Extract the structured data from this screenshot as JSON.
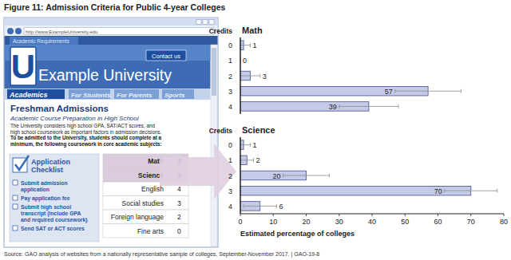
{
  "figure": {
    "title": "Figure 11: Admission Criteria for Public 4-year Colleges",
    "source": "Source: GAO analysis of websites from a nationally representative sample of colleges, September-November 2017.  |  GAO-19-8"
  },
  "website": {
    "url": "http://www.ExampleUniversity.edu",
    "tab": "Academic Requirements",
    "contact": "Contact us",
    "logo": "U",
    "name": "Example University",
    "nav": [
      "Academics",
      "For Students",
      "For Parents",
      "Sports"
    ],
    "heading": "Freshman Admissions",
    "subheading": "Academic Course Preparation in High School",
    "paragraph": [
      "The University considers high school GPA, SAT/ACT scores, and",
      "high school coursework as important factors in admission decisions."
    ],
    "requirement": [
      "To be admitted to the University, students should complete at a",
      "minimum, the following coursework in core academic subjects:"
    ],
    "checklist": {
      "title": [
        "Application",
        "Checklist"
      ],
      "items": [
        [
          "Submit admission",
          "application"
        ],
        [
          "Pay application fee"
        ],
        [
          "Submit high school",
          "transcript (include GPA",
          "and required coursework)"
        ],
        [
          "Send SAT or ACT scores"
        ]
      ]
    },
    "table": {
      "rows": [
        [
          "Math",
          3
        ],
        [
          "Science",
          3
        ],
        [
          "English",
          4
        ],
        [
          "Social studies",
          3
        ],
        [
          "Foreign language",
          2
        ],
        [
          "Fine arts",
          0
        ]
      ]
    }
  },
  "chart_data": [
    {
      "type": "bar",
      "orientation": "horizontal",
      "title": "Math",
      "ylabel": "Credits",
      "categories": [
        "0",
        "1",
        "2",
        "3",
        "4"
      ],
      "values": [
        1,
        0,
        3,
        57,
        39
      ],
      "errors": [
        2,
        0,
        3,
        10,
        9
      ],
      "color": "#c5cae9",
      "xlim": [
        0,
        80
      ],
      "tick_labels": "y",
      "data_labels": true,
      "grid": false
    },
    {
      "type": "bar",
      "orientation": "horizontal",
      "title": "Science",
      "ylabel": "Credits",
      "xlabel": "Estimated percentage of colleges",
      "categories": [
        "0",
        "1",
        "2",
        "3",
        "4"
      ],
      "values": [
        1,
        2,
        20,
        70,
        6
      ],
      "errors": [
        2,
        2,
        7,
        8,
        5
      ],
      "color": "#c5cae9",
      "xlim": [
        0,
        80
      ],
      "xticks": [
        0,
        10,
        20,
        30,
        40,
        50,
        60,
        70,
        80
      ],
      "data_labels": true,
      "grid": false
    }
  ]
}
